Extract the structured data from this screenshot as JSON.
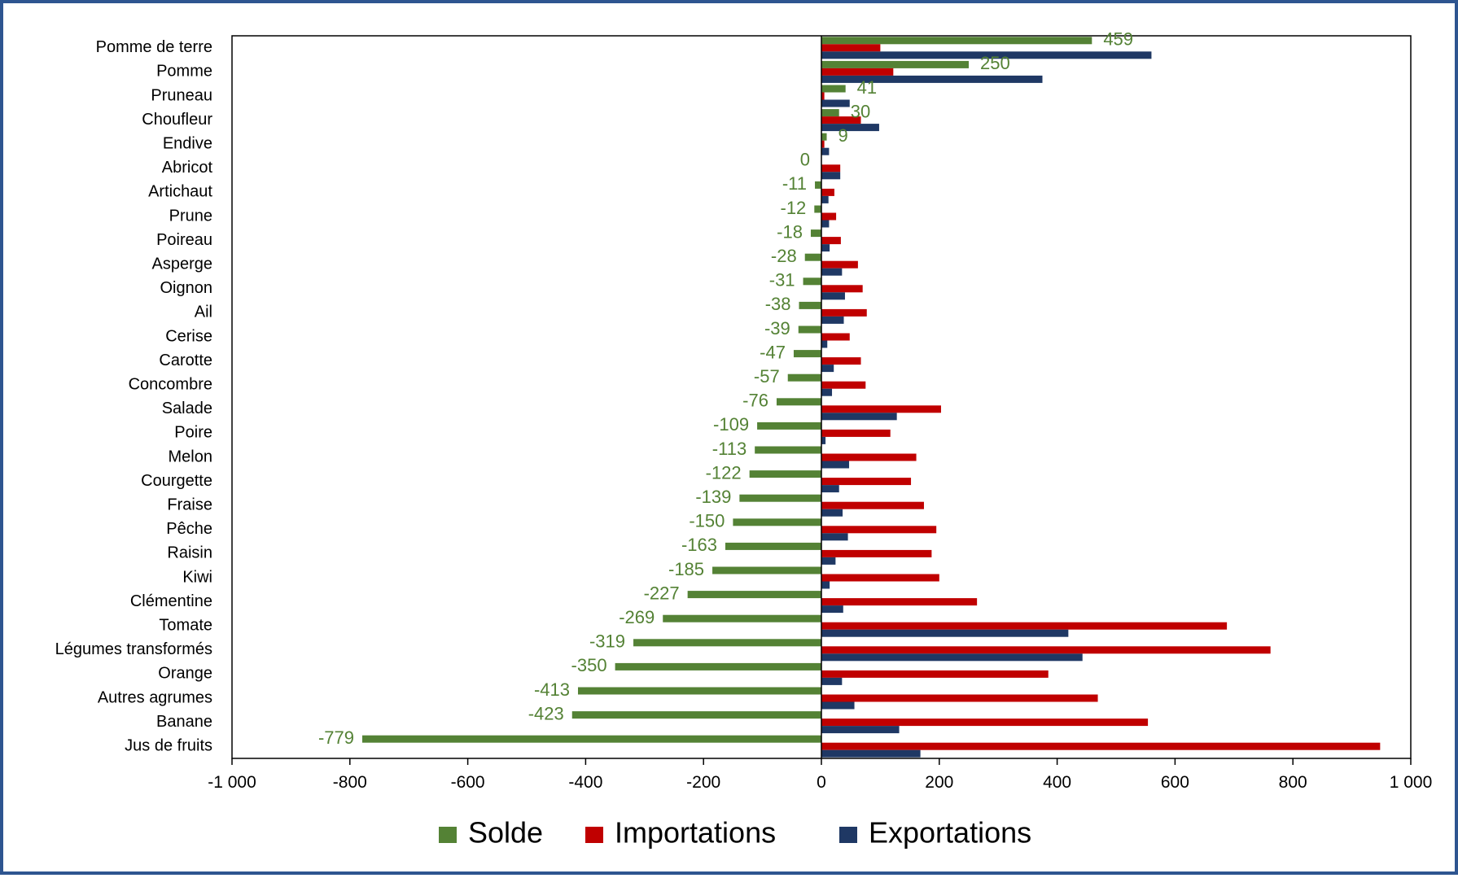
{
  "chart_data": {
    "type": "bar",
    "orientation": "horizontal",
    "title": "",
    "xlabel": "",
    "ylabel": "",
    "xlim": [
      -1000,
      1000
    ],
    "x_ticks": [
      -1000,
      -800,
      -600,
      -400,
      -200,
      0,
      200,
      400,
      600,
      800,
      1000
    ],
    "x_tick_labels": [
      "-1 000",
      "-800",
      "-600",
      "-400",
      "-200",
      "0",
      "200",
      "400",
      "600",
      "800",
      "1 000"
    ],
    "grid": false,
    "legend_position": "bottom",
    "categories": [
      "Pomme de terre",
      "Pomme",
      "Pruneau",
      "Choufleur",
      "Endive",
      "Abricot",
      "Artichaut",
      "Prune",
      "Poireau",
      "Asperge",
      "Oignon",
      "Ail",
      "Cerise",
      "Carotte",
      "Concombre",
      "Salade",
      "Poire",
      "Melon",
      "Courgette",
      "Fraise",
      "Pêche",
      "Raisin",
      "Kiwi",
      "Clémentine",
      "Tomate",
      "Légumes transformés",
      "Orange",
      "Autres agrumes",
      "Banane",
      "Jus de fruits"
    ],
    "series": [
      {
        "name": "Solde",
        "color": "#548235",
        "show_labels": true,
        "values": [
          459,
          250,
          41,
          30,
          9,
          0,
          -11,
          -12,
          -18,
          -28,
          -31,
          -38,
          -39,
          -47,
          -57,
          -76,
          -109,
          -113,
          -122,
          -139,
          -150,
          -163,
          -185,
          -227,
          -269,
          -319,
          -350,
          -413,
          -423,
          -779
        ]
      },
      {
        "name": "Importations",
        "color": "#c00000",
        "show_labels": false,
        "values": [
          100,
          122,
          5,
          67,
          5,
          32,
          22,
          25,
          33,
          62,
          70,
          77,
          48,
          67,
          75,
          203,
          117,
          161,
          152,
          174,
          195,
          187,
          200,
          264,
          688,
          762,
          385,
          469,
          554,
          948
        ]
      },
      {
        "name": "Exportations",
        "color": "#1f3864",
        "show_labels": false,
        "values": [
          560,
          375,
          48,
          98,
          13,
          32,
          12,
          13,
          14,
          35,
          40,
          38,
          10,
          21,
          18,
          128,
          7,
          47,
          30,
          36,
          45,
          24,
          14,
          37,
          419,
          443,
          35,
          56,
          132,
          168
        ]
      }
    ]
  }
}
